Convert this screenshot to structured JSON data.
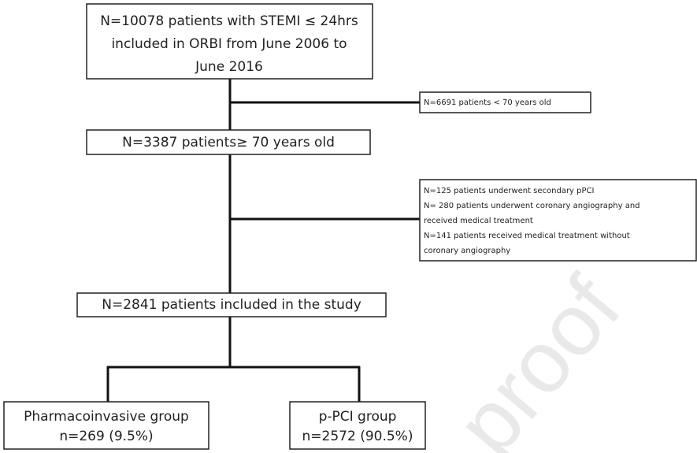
{
  "watermark": "proof",
  "nodes": [
    {
      "lines": [
        "N=10078 patients with STEMI ≤ 24hrs",
        "included in ORBI from June 2006 to",
        "June 2016"
      ]
    },
    {
      "lines": [
        "N=6691 patients < 70 years old"
      ]
    },
    {
      "lines": [
        "N=3387 patients≥ 70 years old"
      ]
    },
    {
      "lines": [
        "N=125 patients underwent secondary pPCI",
        "N= 280 patients underwent coronary angiography and",
        "received medical treatment",
        "N=141 patients received medical treatment without",
        "coronary angiography"
      ]
    },
    {
      "lines": [
        "N=2841 patients included in the study"
      ]
    },
    {
      "lines": [
        "Pharmacoinvasive group",
        "n=269 (9.5%)"
      ]
    },
    {
      "lines": [
        "p-PCI group",
        "n=2572 (90.5%)"
      ]
    }
  ]
}
